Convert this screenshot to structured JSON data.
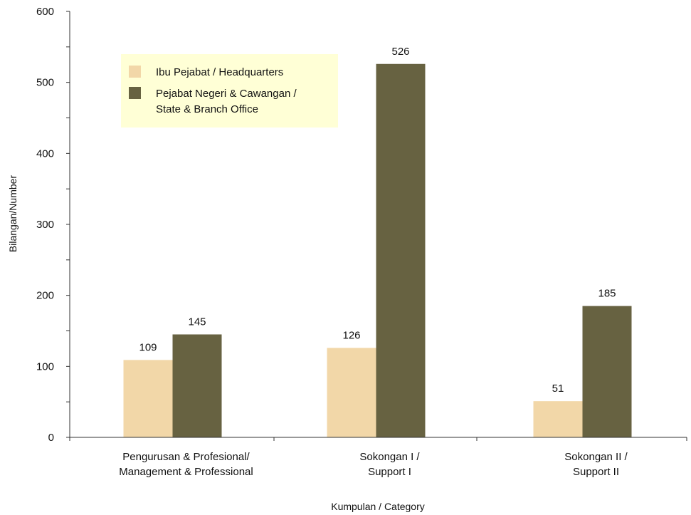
{
  "chart_data": {
    "type": "bar",
    "categories": [
      [
        "Pengurusan & Profesional/",
        "Management & Professional"
      ],
      [
        "Sokongan I /",
        "Support I"
      ],
      [
        "Sokongan II /",
        "Support II"
      ]
    ],
    "series": [
      {
        "name": "Ibu Pejabat / Headquarters",
        "color": "#f2d7a8",
        "values": [
          109,
          126,
          51
        ]
      },
      {
        "name_lines": [
          "Pejabat Negeri & Cawangan /",
          "State & Branch Office"
        ],
        "color": "#676241",
        "values": [
          145,
          526,
          185
        ]
      }
    ],
    "xlabel": "Kumpulan / Category",
    "ylabel": "Bilangan/Number",
    "ylim": [
      0,
      600
    ],
    "yticks": [
      0,
      100,
      200,
      300,
      400,
      500,
      600
    ],
    "grid": false,
    "legend": {
      "position": "top-left",
      "background": "#ffffd6"
    }
  }
}
